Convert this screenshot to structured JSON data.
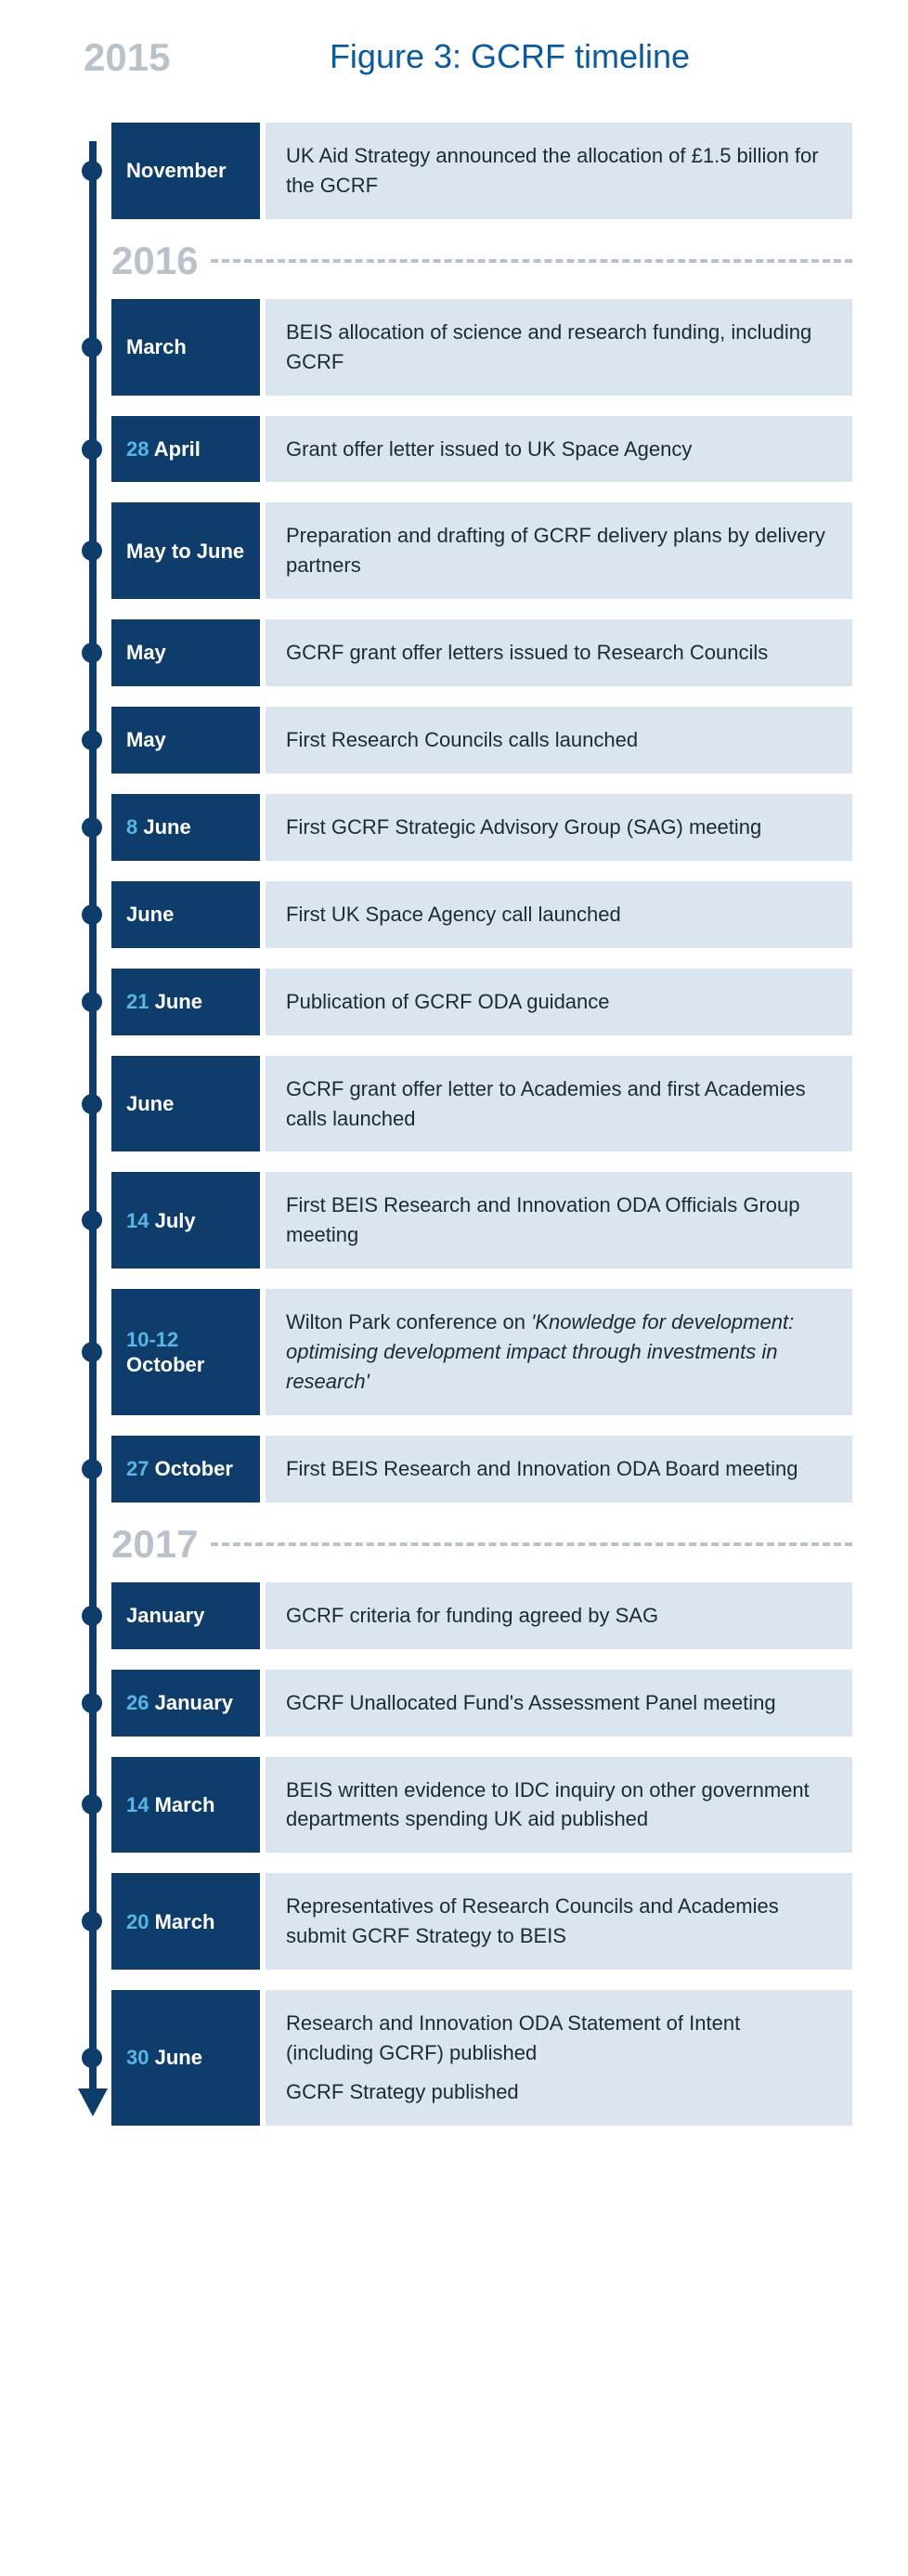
{
  "title": "Figure 3: GCRF timeline",
  "colors": {
    "title": "#0b5a9e",
    "year_muted": "#b9c2cb",
    "rail": "#0f3d6b",
    "month_bg": "#0f3d6b",
    "month_text": "#ffffff",
    "day_accent": "#58b6e6",
    "desc_bg": "#dbe5ef",
    "desc_text": "#1a2a3a",
    "page_bg": "#ffffff"
  },
  "type": "vertical-timeline",
  "start_year": "2015",
  "dividers": {
    "y2016": "2016",
    "y2017": "2017"
  },
  "entries": {
    "e0": {
      "day": "",
      "month": "November",
      "desc": "UK Aid Strategy announced the allocation of £1.5 billion for the GCRF"
    },
    "e1": {
      "day": "",
      "month": "March",
      "desc": "BEIS allocation of science and research funding, including GCRF"
    },
    "e2": {
      "day": "28",
      "month": "April",
      "desc": "Grant offer letter issued to UK Space Agency"
    },
    "e3": {
      "day": "",
      "month": "May to June",
      "desc": "Preparation and drafting of GCRF delivery plans by delivery partners"
    },
    "e4": {
      "day": "",
      "month": "May",
      "desc": "GCRF grant offer letters issued to Research Councils"
    },
    "e5": {
      "day": "",
      "month": "May",
      "desc": "First Research Councils calls launched"
    },
    "e6": {
      "day": "8",
      "month": "June",
      "desc": "First GCRF Strategic Advisory Group (SAG) meeting"
    },
    "e7": {
      "day": "",
      "month": "June",
      "desc": "First UK Space Agency call launched"
    },
    "e8": {
      "day": "21",
      "month": "June",
      "desc": "Publication of GCRF ODA guidance"
    },
    "e9": {
      "day": "",
      "month": "June",
      "desc": "GCRF grant offer letter to Academies and first Academies calls launched"
    },
    "e10": {
      "day": "14",
      "month": "July",
      "desc": "First BEIS Research and Innovation ODA Officials Group meeting"
    },
    "e11": {
      "day": "10-12",
      "month": "October",
      "desc_pre": "Wilton Park conference on ",
      "desc_italic": "'Knowledge for development: optimising development impact through investments in research'"
    },
    "e12": {
      "day": "27",
      "month": "October",
      "desc": "First BEIS Research and Innovation ODA Board meeting"
    },
    "e13": {
      "day": "",
      "month": "January",
      "desc": "GCRF criteria for funding agreed by SAG"
    },
    "e14": {
      "day": "26",
      "month": "January",
      "desc": "GCRF Unallocated Fund's Assessment Panel meeting"
    },
    "e15": {
      "day": "14",
      "month": "March",
      "desc": "BEIS written evidence to IDC inquiry on other government departments spending UK aid published"
    },
    "e16": {
      "day": "20",
      "month": "March",
      "desc": "Representatives of Research Councils and Academies submit GCRF Strategy to BEIS"
    },
    "e17": {
      "day": "30",
      "month": "June",
      "desc": "Research and Innovation ODA Statement of Intent (including GCRF) published",
      "desc2": "GCRF Strategy published"
    }
  }
}
